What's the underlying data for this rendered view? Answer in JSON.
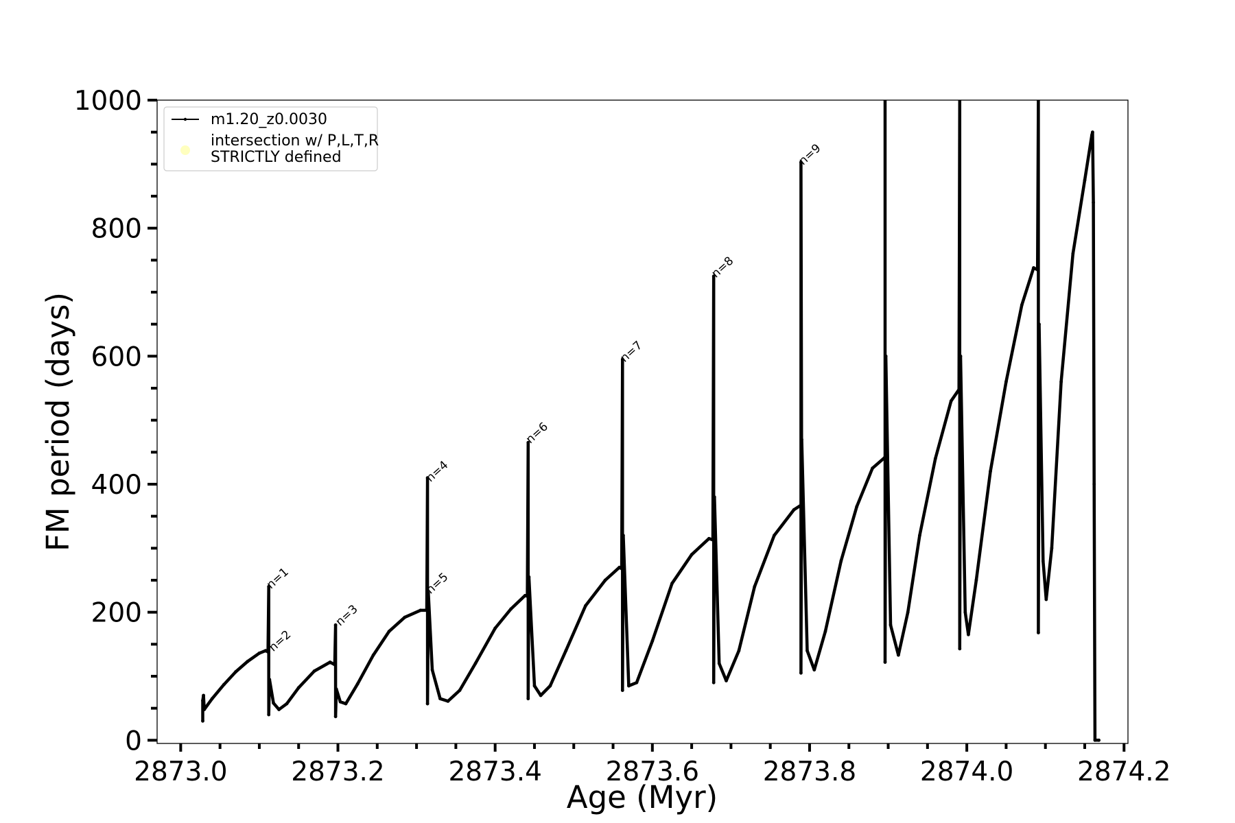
{
  "chart_data": {
    "type": "line",
    "title": "",
    "xlabel": "Age (Myr)",
    "ylabel": "FM period (days)",
    "xlim": [
      2872.97,
      2874.205
    ],
    "ylim": [
      -5,
      1000
    ],
    "xticks": [
      2873.0,
      2873.2,
      2873.4,
      2873.6,
      2873.8,
      2874.0,
      2874.2
    ],
    "xtick_labels": [
      "2873.0",
      "2873.2",
      "2873.4",
      "2873.6",
      "2873.8",
      "2874.0",
      "2874.2"
    ],
    "yticks": [
      0,
      200,
      400,
      600,
      800,
      1000
    ],
    "ytick_labels": [
      "0",
      "200",
      "400",
      "600",
      "800",
      "1000"
    ],
    "grid": false,
    "legend_position": "upper-left",
    "series": [
      {
        "name": "m1.20_z0.0030",
        "color": "#000000",
        "marker": "dot",
        "segments": [
          [
            [
              2873.028,
              30
            ],
            [
              2873.028,
              62
            ],
            [
              2873.029,
              70
            ],
            [
              2873.03,
              48
            ],
            [
              2873.04,
              65
            ],
            [
              2873.055,
              87
            ],
            [
              2873.07,
              107
            ],
            [
              2873.085,
              123
            ],
            [
              2873.1,
              136
            ],
            [
              2873.108,
              140
            ],
            [
              2873.111,
              138
            ],
            [
              2873.112,
              240
            ],
            [
              2873.112,
              40
            ],
            [
              2873.113,
              95
            ],
            [
              2873.118,
              58
            ],
            [
              2873.125,
              48
            ],
            [
              2873.135,
              57
            ],
            [
              2873.15,
              82
            ],
            [
              2873.17,
              108
            ],
            [
              2873.19,
              122
            ],
            [
              2873.196,
              118
            ],
            [
              2873.197,
              180
            ],
            [
              2873.197,
              37
            ],
            [
              2873.198,
              80
            ],
            [
              2873.203,
              60
            ],
            [
              2873.21,
              57
            ],
            [
              2873.225,
              88
            ],
            [
              2873.245,
              133
            ],
            [
              2873.265,
              170
            ],
            [
              2873.285,
              192
            ],
            [
              2873.305,
              203
            ],
            [
              2873.313,
              203
            ],
            [
              2873.314,
              410
            ],
            [
              2873.314,
              57
            ],
            [
              2873.315,
              230
            ],
            [
              2873.32,
              110
            ],
            [
              2873.33,
              65
            ],
            [
              2873.34,
              61
            ],
            [
              2873.355,
              78
            ],
            [
              2873.375,
              120
            ],
            [
              2873.4,
              175
            ],
            [
              2873.42,
              205
            ],
            [
              2873.438,
              226
            ],
            [
              2873.441,
              225
            ],
            [
              2873.442,
              465
            ],
            [
              2873.442,
              65
            ],
            [
              2873.443,
              255
            ],
            [
              2873.45,
              85
            ],
            [
              2873.458,
              70
            ],
            [
              2873.47,
              85
            ],
            [
              2873.49,
              140
            ],
            [
              2873.515,
              210
            ],
            [
              2873.54,
              250
            ],
            [
              2873.558,
              270
            ],
            [
              2873.561,
              268
            ],
            [
              2873.562,
              595
            ],
            [
              2873.562,
              78
            ],
            [
              2873.563,
              320
            ],
            [
              2873.57,
              85
            ],
            [
              2873.58,
              90
            ],
            [
              2873.6,
              155
            ],
            [
              2873.625,
              245
            ],
            [
              2873.65,
              290
            ],
            [
              2873.672,
              315
            ],
            [
              2873.677,
              313
            ],
            [
              2873.678,
              725
            ],
            [
              2873.678,
              90
            ],
            [
              2873.679,
              380
            ],
            [
              2873.685,
              120
            ],
            [
              2873.694,
              93
            ],
            [
              2873.71,
              140
            ],
            [
              2873.73,
              240
            ],
            [
              2873.755,
              320
            ],
            [
              2873.78,
              360
            ],
            [
              2873.79,
              368
            ],
            [
              2873.789,
              903
            ],
            [
              2873.789,
              105
            ],
            [
              2873.79,
              470
            ],
            [
              2873.797,
              140
            ],
            [
              2873.806,
              110
            ],
            [
              2873.82,
              170
            ],
            [
              2873.84,
              280
            ],
            [
              2873.86,
              365
            ],
            [
              2873.88,
              425
            ],
            [
              2873.895,
              441
            ],
            [
              2873.896,
              440
            ]
          ],
          [
            [
              2873.896,
              1000
            ],
            [
              2873.896,
              122
            ],
            [
              2873.897,
              600
            ],
            [
              2873.903,
              180
            ],
            [
              2873.913,
              133
            ],
            [
              2873.925,
              200
            ],
            [
              2873.94,
              320
            ],
            [
              2873.96,
              440
            ],
            [
              2873.98,
              530
            ],
            [
              2873.99,
              548
            ],
            [
              2873.991,
              1000
            ],
            [
              2873.991,
              143
            ],
            [
              2873.992,
              600
            ],
            [
              2873.998,
              200
            ],
            [
              2874.002,
              165
            ],
            [
              2874.012,
              250
            ],
            [
              2874.03,
              420
            ],
            [
              2874.05,
              560
            ],
            [
              2874.07,
              680
            ],
            [
              2874.085,
              738
            ],
            [
              2874.09,
              735
            ],
            [
              2874.091,
              1000
            ],
            [
              2874.091,
              168
            ],
            [
              2874.092,
              650
            ],
            [
              2874.097,
              280
            ],
            [
              2874.101,
              220
            ],
            [
              2874.108,
              300
            ],
            [
              2874.12,
              560
            ],
            [
              2874.135,
              760
            ],
            [
              2874.15,
              875
            ],
            [
              2874.159,
              945
            ],
            [
              2874.16,
              950
            ],
            [
              2874.161,
              840
            ],
            [
              2874.162,
              400
            ],
            [
              2874.163,
              0
            ],
            [
              2874.168,
              0
            ]
          ]
        ]
      }
    ],
    "overlay_series": [
      {
        "name": "intersection w/ P,L,T,R\nSTRICTLY defined",
        "color": "#ffffbf",
        "marker": "circle",
        "points": []
      }
    ],
    "annotations": [
      {
        "text": "n=1",
        "x": 2873.113,
        "y": 238
      },
      {
        "text": "n=2",
        "x": 2873.116,
        "y": 140
      },
      {
        "text": "n=3",
        "x": 2873.201,
        "y": 180
      },
      {
        "text": "n=4",
        "x": 2873.316,
        "y": 405
      },
      {
        "text": "n=5",
        "x": 2873.316,
        "y": 230
      },
      {
        "text": "n=6",
        "x": 2873.443,
        "y": 465
      },
      {
        "text": "n=7",
        "x": 2873.563,
        "y": 592
      },
      {
        "text": "n=8",
        "x": 2873.679,
        "y": 724
      },
      {
        "text": "n=9",
        "x": 2873.79,
        "y": 900
      }
    ]
  }
}
